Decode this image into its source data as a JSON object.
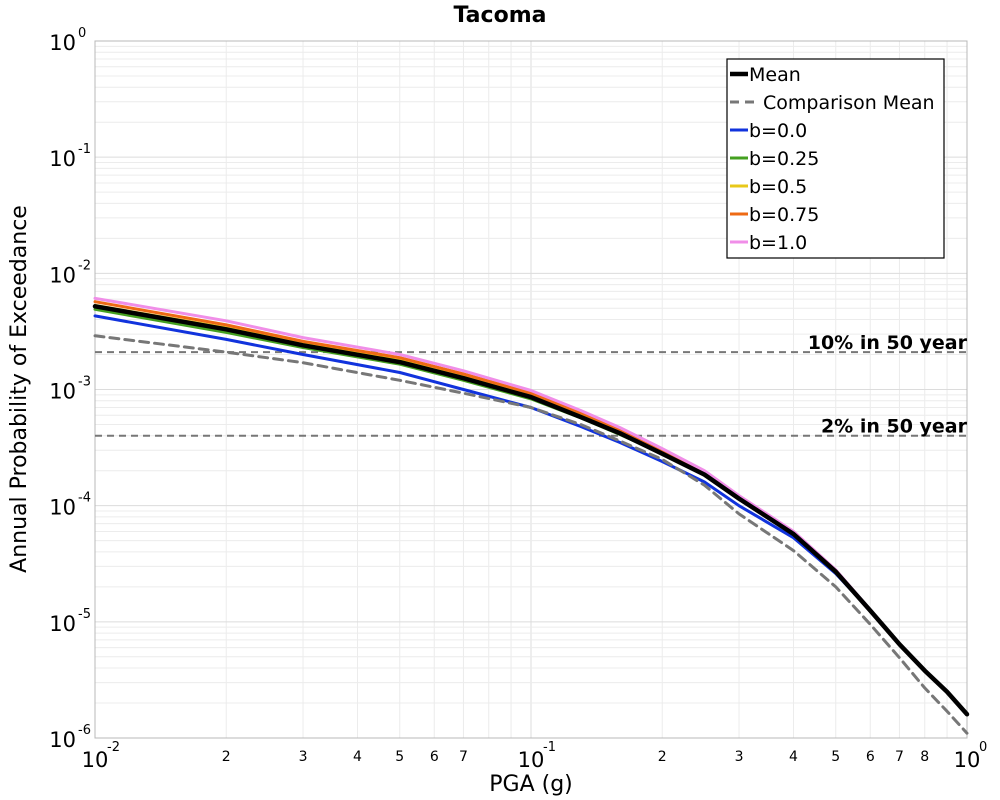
{
  "chart_data": {
    "type": "line",
    "title": "Tacoma",
    "xlabel": "PGA (g)",
    "ylabel": "Annual Probability of Exceedance",
    "x_scale": "log",
    "y_scale": "log",
    "xlim": [
      0.01,
      1.0
    ],
    "ylim": [
      1e-06,
      1.0
    ],
    "grid": true,
    "legend_position": "top-right",
    "x_major_ticks": [
      {
        "value": 0.01,
        "base": "10",
        "exp": "-2"
      },
      {
        "value": 0.1,
        "base": "10",
        "exp": "-1"
      },
      {
        "value": 1.0,
        "base": "10",
        "exp": "0"
      }
    ],
    "x_minor_ticks": [
      {
        "value": 0.02,
        "label": "2"
      },
      {
        "value": 0.03,
        "label": "3"
      },
      {
        "value": 0.04,
        "label": "4"
      },
      {
        "value": 0.05,
        "label": "5"
      },
      {
        "value": 0.06,
        "label": "6"
      },
      {
        "value": 0.07,
        "label": "7"
      },
      {
        "value": 0.2,
        "label": "2"
      },
      {
        "value": 0.3,
        "label": "3"
      },
      {
        "value": 0.4,
        "label": "4"
      },
      {
        "value": 0.5,
        "label": "5"
      },
      {
        "value": 0.6,
        "label": "6"
      },
      {
        "value": 0.7,
        "label": "7"
      },
      {
        "value": 0.8,
        "label": "8"
      }
    ],
    "y_major_ticks": [
      {
        "value": 1.0,
        "base": "10",
        "exp": "0"
      },
      {
        "value": 0.1,
        "base": "10",
        "exp": "-1"
      },
      {
        "value": 0.01,
        "base": "10",
        "exp": "-2"
      },
      {
        "value": 0.001,
        "base": "10",
        "exp": "-3"
      },
      {
        "value": 0.0001,
        "base": "10",
        "exp": "-4"
      },
      {
        "value": 1e-05,
        "base": "10",
        "exp": "-5"
      },
      {
        "value": 1e-06,
        "base": "10",
        "exp": "-6"
      }
    ],
    "x": [
      0.01,
      0.02,
      0.03,
      0.05,
      0.07,
      0.1,
      0.13,
      0.16,
      0.2,
      0.25,
      0.3,
      0.4,
      0.5,
      0.6,
      0.7,
      0.8,
      0.9,
      1.0
    ],
    "series": [
      {
        "name": "b=0.0",
        "color": "#1133dd",
        "dash": false,
        "values": [
          0.0043,
          0.0027,
          0.002,
          0.0014,
          0.001,
          0.0007,
          0.00048,
          0.00035,
          0.00024,
          0.00016,
          0.0001,
          5.3e-05,
          2.6e-05,
          1.25e-05,
          6.4e-06,
          3.8e-06,
          2.5e-06,
          1.6e-06
        ]
      },
      {
        "name": "b=0.25",
        "color": "#44a020",
        "dash": false,
        "values": [
          0.0049,
          0.0031,
          0.0023,
          0.00165,
          0.0012,
          0.00083,
          0.00057,
          0.00041,
          0.00028,
          0.000185,
          0.000115,
          5.7e-05,
          2.7e-05,
          1.25e-05,
          6.4e-06,
          3.8e-06,
          2.5e-06,
          1.6e-06
        ]
      },
      {
        "name": "b=0.5",
        "color": "#e8c81a",
        "dash": false,
        "values": [
          0.0053,
          0.0034,
          0.0025,
          0.00178,
          0.0013,
          0.00088,
          0.0006,
          0.00043,
          0.00029,
          0.00019,
          0.000118,
          5.8e-05,
          2.7e-05,
          1.25e-05,
          6.4e-06,
          3.8e-06,
          2.5e-06,
          1.6e-06
        ]
      },
      {
        "name": "b=0.75",
        "color": "#ee6a14",
        "dash": false,
        "values": [
          0.0057,
          0.0036,
          0.0026,
          0.00188,
          0.00136,
          0.00093,
          0.00063,
          0.00045,
          0.0003,
          0.000195,
          0.00012,
          5.9e-05,
          2.75e-05,
          1.26e-05,
          6.4e-06,
          3.8e-06,
          2.5e-06,
          1.6e-06
        ]
      },
      {
        "name": "b=1.0",
        "color": "#f08ee8",
        "dash": false,
        "values": [
          0.0061,
          0.0039,
          0.0028,
          0.002,
          0.00145,
          0.00098,
          0.00066,
          0.00047,
          0.00031,
          0.0002,
          0.000122,
          6e-05,
          2.8e-05,
          1.27e-05,
          6.4e-06,
          3.8e-06,
          2.5e-06,
          1.6e-06
        ]
      },
      {
        "name": "Mean",
        "color": "#000000",
        "dash": false,
        "values": [
          0.0052,
          0.0033,
          0.0024,
          0.00172,
          0.00125,
          0.00086,
          0.00058,
          0.00042,
          0.00028,
          0.000185,
          0.000115,
          5.7e-05,
          2.7e-05,
          1.25e-05,
          6.4e-06,
          3.8e-06,
          2.5e-06,
          1.6e-06
        ]
      },
      {
        "name": "Comparison Mean",
        "color": "#777777",
        "dash": true,
        "values": [
          0.0029,
          0.0021,
          0.0017,
          0.0012,
          0.00093,
          0.0007,
          0.0005,
          0.00036,
          0.00025,
          0.00015,
          8.5e-05,
          4.1e-05,
          2e-05,
          9.5e-06,
          4.9e-06,
          2.7e-06,
          1.7e-06,
          1.1e-06
        ]
      }
    ],
    "legend_order": [
      "Mean",
      "Comparison Mean",
      "b=0.0",
      "b=0.25",
      "b=0.5",
      "b=0.75",
      "b=1.0"
    ],
    "reference_lines": [
      {
        "label": "10% in 50 year",
        "value": 0.0021,
        "color": "#777777"
      },
      {
        "label": "2% in 50 year",
        "value": 0.0004,
        "color": "#777777"
      }
    ]
  }
}
